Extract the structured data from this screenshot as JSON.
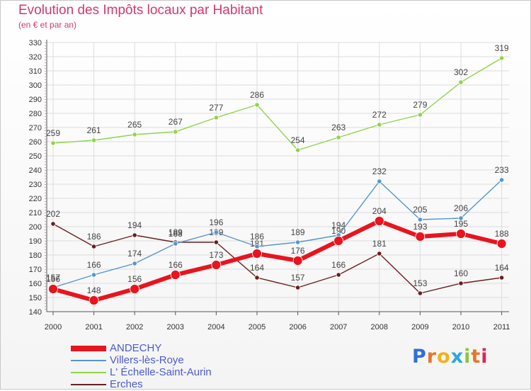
{
  "title": "Evolution des Impôts locaux par Habitant",
  "subtitle": "(en € et par an)",
  "logo": {
    "text": "Proxiti",
    "letters": [
      "P",
      "r",
      "o",
      "x",
      "i",
      "t",
      "i"
    ],
    "colors": [
      "#2f6fd6",
      "#e8752a",
      "#f2b21c",
      "#2aa8e0",
      "#8cc63f",
      "#e8752a",
      "#d8265d"
    ]
  },
  "chart_data": {
    "type": "line",
    "title": "Evolution des Impôts locaux par Habitant",
    "subtitle": "(en € et par an)",
    "xlabel": "",
    "ylabel": "",
    "x": [
      "2000",
      "2001",
      "2002",
      "2003",
      "2004",
      "2005",
      "2006",
      "2007",
      "2008",
      "2009",
      "2010",
      "2011"
    ],
    "ylim": [
      140,
      330
    ],
    "yticks": [
      140,
      150,
      160,
      170,
      180,
      190,
      200,
      210,
      220,
      230,
      240,
      250,
      260,
      270,
      280,
      290,
      300,
      310,
      320,
      330
    ],
    "grid": true,
    "legend_position": "bottom-left",
    "series": [
      {
        "name": "ANDECHY",
        "color": "#e8141e",
        "values": [
          156,
          148,
          156,
          166,
          173,
          181,
          176,
          190,
          204,
          193,
          195,
          188
        ],
        "labels": [
          "156",
          "148",
          "156",
          "166",
          "173",
          "181",
          "176",
          "190",
          "204",
          "193",
          "195",
          "188"
        ]
      },
      {
        "name": "Villers-lès-Roye",
        "color": "#5596cc",
        "values": [
          157,
          166,
          174,
          188,
          196,
          186,
          189,
          194,
          232,
          205,
          206,
          233
        ],
        "labels": [
          "157",
          "166",
          "174",
          "188",
          "196",
          "186",
          "189",
          "194",
          "232",
          "205",
          "206",
          "233"
        ]
      },
      {
        "name": "L' Échelle-Saint-Aurin",
        "color": "#8fd44a",
        "values": [
          259,
          261,
          265,
          267,
          277,
          286,
          254,
          263,
          272,
          279,
          302,
          319
        ],
        "labels": [
          "259",
          "261",
          "265",
          "267",
          "277",
          "286",
          "254",
          "263",
          "272",
          "279",
          "302",
          "319"
        ]
      },
      {
        "name": "Erches",
        "color": "#6b1f1f",
        "values": [
          202,
          186,
          194,
          189,
          189,
          164,
          157,
          166,
          181,
          153,
          160,
          164
        ],
        "labels": [
          "202",
          "186",
          "194",
          "189",
          "189",
          "164",
          "157",
          "166",
          "181",
          "153",
          "160",
          "164"
        ]
      }
    ]
  }
}
